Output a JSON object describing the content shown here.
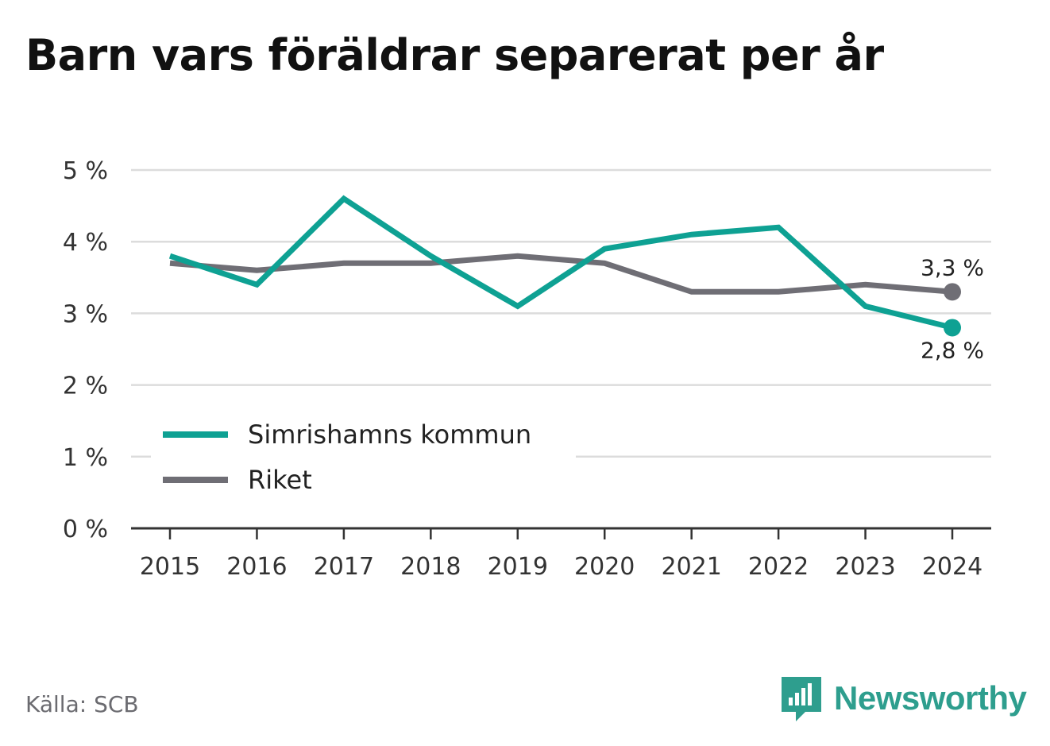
{
  "title": "Barn vars föräldrar separerat per år",
  "source": "Källa: SCB",
  "brand": {
    "name": "Newsworthy",
    "icon": "newsworthy-logo-icon",
    "color": "#2e9e8e"
  },
  "chart_data": {
    "type": "line",
    "x": [
      "2015",
      "2016",
      "2017",
      "2018",
      "2019",
      "2020",
      "2021",
      "2022",
      "2023",
      "2024"
    ],
    "series": [
      {
        "name": "Simrishamns kommun",
        "color": "#0ea193",
        "values": [
          3.8,
          3.4,
          4.6,
          3.8,
          3.1,
          3.9,
          4.1,
          4.2,
          3.1,
          2.8
        ],
        "end_label": "2,8 %"
      },
      {
        "name": "Riket",
        "color": "#6f6e75",
        "values": [
          3.7,
          3.6,
          3.7,
          3.7,
          3.8,
          3.7,
          3.3,
          3.3,
          3.4,
          3.3
        ],
        "end_label": "3,3 %"
      }
    ],
    "y_ticks": [
      "0 %",
      "1 %",
      "2 %",
      "3 %",
      "4 %",
      "5 %"
    ],
    "ylim": [
      0,
      5
    ],
    "grid": true,
    "legend_position": "bottom-left"
  }
}
